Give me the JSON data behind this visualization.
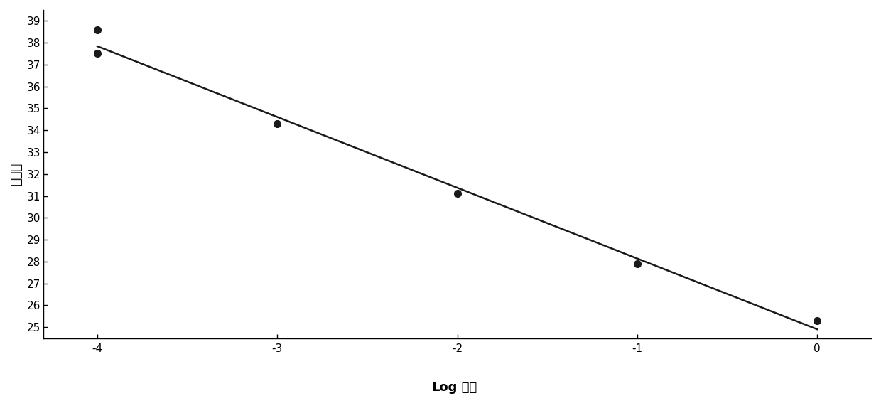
{
  "scatter_x": [
    -4,
    -4,
    -3,
    -2,
    -1,
    0
  ],
  "scatter_y": [
    37.5,
    38.6,
    34.3,
    31.1,
    27.9,
    25.3
  ],
  "line_x": [
    -4,
    0
  ],
  "line_slope": -3.22,
  "line_intercept": 25.3,
  "xlabel_bold": "Log",
  "xlabel_normal": " 浓度",
  "ylabel": "交叉点",
  "xlim": [
    -4.3,
    0.3
  ],
  "ylim": [
    24.5,
    39.5
  ],
  "yticks": [
    25,
    26,
    27,
    28,
    29,
    30,
    31,
    32,
    33,
    34,
    35,
    36,
    37,
    38,
    39
  ],
  "xticks": [
    -4,
    -3,
    -2,
    -1,
    0
  ],
  "xtick_labels": [
    "-4",
    "-3",
    "-2",
    "-1",
    "0"
  ],
  "marker_color": "#1a1a1a",
  "line_color": "#1a1a1a",
  "bg_color": "#ffffff",
  "marker_size": 7,
  "line_width": 1.8
}
